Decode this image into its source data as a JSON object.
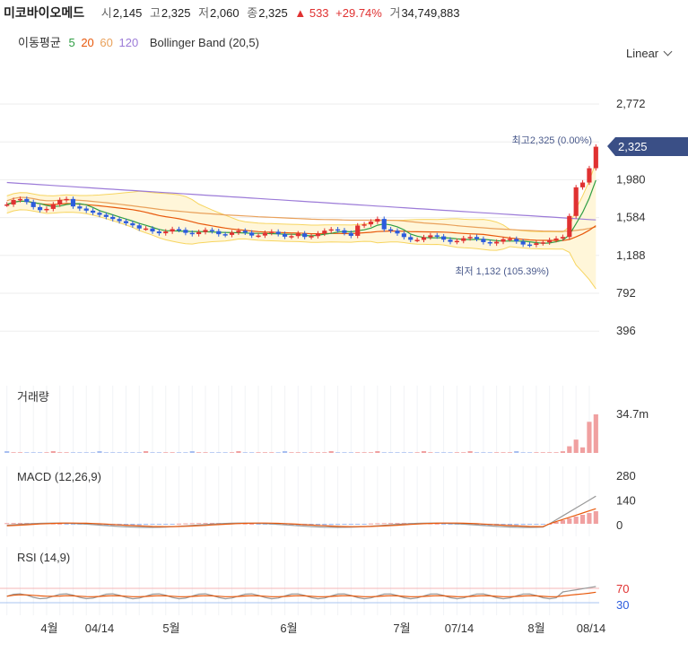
{
  "quote": {
    "name": "미코바이오메드",
    "open_label": "시",
    "open": "2,145",
    "high_label": "고",
    "high": "2,325",
    "low_label": "저",
    "low": "2,060",
    "close_label": "종",
    "close": "2,325",
    "change": "▲ 533",
    "change_pct": "+29.74%",
    "volume_label": "거",
    "volume": "34,749,883"
  },
  "legend": {
    "title": "이동평균",
    "ma": [
      {
        "label": "5",
        "color": "#2f9e44"
      },
      {
        "label": "20",
        "color": "#e8590c"
      },
      {
        "label": "60",
        "color": "#e9a15b"
      },
      {
        "label": "120",
        "color": "#9c7bd8"
      }
    ],
    "bollinger": "Bollinger Band (20,5)"
  },
  "scale": {
    "label": "Linear"
  },
  "colors": {
    "up": "#e03131",
    "down": "#2c5cdd",
    "band_fill": "#fff6d9",
    "band_line": "#f7d560",
    "grid": "#eeeeee"
  },
  "price_chart": {
    "y_ticks": [
      "2,772",
      "2,376",
      "1,980",
      "1,584",
      "1,188",
      "792",
      "396"
    ],
    "y_min": 0,
    "y_max": 3000,
    "last_price_tag": "2,325",
    "high_annotation": "최고2,325 (0.00%)",
    "low_annotation": "최저 1,132 (105.39%)"
  },
  "volume_panel": {
    "title": "거래량",
    "tick": "34.7m"
  },
  "macd_panel": {
    "title": "MACD (12,26,9)",
    "ticks": [
      "280",
      "140",
      "0"
    ]
  },
  "rsi_panel": {
    "title": "RSI (14,9)",
    "ticks": [
      "70",
      "30"
    ]
  },
  "x_axis": {
    "labels": [
      "4월",
      "04/14",
      "5월",
      "6월",
      "7월",
      "07/14",
      "8월",
      "08/14"
    ]
  },
  "chart_data": {
    "type": "candlestick",
    "period": "daily",
    "n_candles": 90,
    "last_candle": {
      "open": 2145,
      "high": 2325,
      "low": 2060,
      "close": 2325,
      "volume": 34749883
    },
    "period_high": 2325,
    "period_low": 1132,
    "moving_averages": [
      5,
      20,
      60,
      120
    ],
    "bollinger": {
      "period": 20,
      "k": 5
    },
    "macd": {
      "fast": 12,
      "slow": 26,
      "signal": 9
    },
    "rsi": {
      "period": 14,
      "signal": 9,
      "levels": [
        70,
        30
      ]
    }
  }
}
